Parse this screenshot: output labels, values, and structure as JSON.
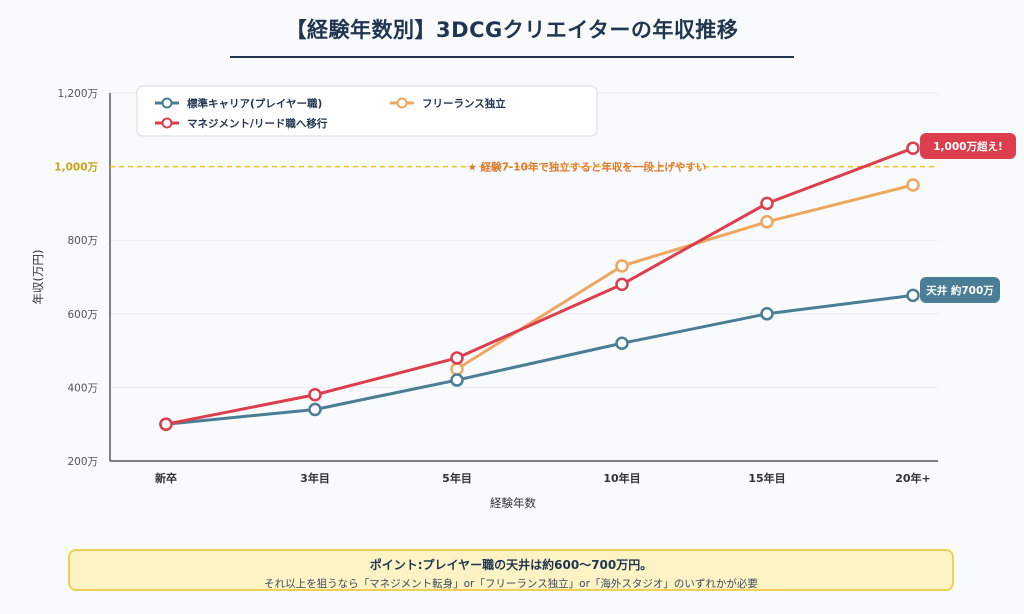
{
  "page": {
    "title": "【経験年数別】3DCGクリエイターの年収推移"
  },
  "chart_data": {
    "type": "line",
    "categories": [
      "新卒",
      "3年目",
      "5年目",
      "10年目",
      "15年目",
      "20年+"
    ],
    "xlabel": "経験年数",
    "ylabel": "年収(万円)",
    "ylim": [
      200,
      1200
    ],
    "yticks": [
      200,
      400,
      600,
      800,
      1000,
      1200
    ],
    "ytick_labels": [
      "200万",
      "400万",
      "600万",
      "800万",
      "1,000万",
      "1,200万"
    ],
    "grid": true,
    "legend_position": "top-left",
    "series": [
      {
        "name": "標準キャリア(プレイヤー職)",
        "color": "#4a7d96",
        "values": [
          300,
          340,
          420,
          520,
          600,
          650
        ]
      },
      {
        "name": "フリーランス独立",
        "color": "#efa760",
        "values": [
          null,
          null,
          450,
          730,
          850,
          950
        ]
      },
      {
        "name": "マネジメント/リード職へ移行",
        "color": "#dc3e4d",
        "values": [
          300,
          380,
          480,
          680,
          900,
          1050
        ]
      }
    ],
    "reference_line": {
      "value": 1000,
      "label": "★ 経験7-10年で独立すると年収を一段上げやすい",
      "color": "#f0c419",
      "label_color": "#e07a3a"
    },
    "annotations": [
      {
        "text": "1,000万超え!",
        "series": 2,
        "color": "#dc3e4d"
      },
      {
        "text": "天井 約700万",
        "series": 0,
        "color": "#4a7d96"
      }
    ]
  },
  "note": {
    "title": "ポイント:プレイヤー職の天井は約600〜700万円。",
    "text": "それ以上を狙うなら「マネジメント転身」or「フリーランス独立」or「海外スタジオ」のいずれかが必要"
  }
}
